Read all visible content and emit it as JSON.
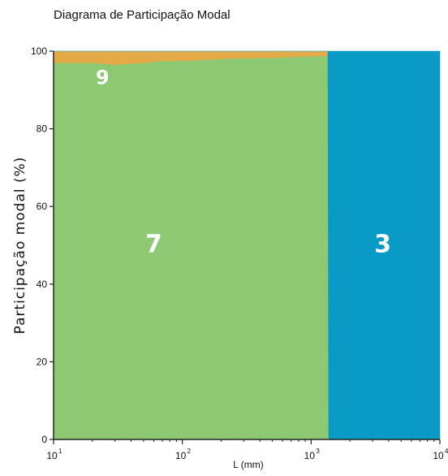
{
  "chart_data": {
    "type": "area",
    "title": "Diagrama de Participação Modal",
    "xlabel": "L (mm)",
    "ylabel": "Participação modal (%)",
    "x_scale": "log",
    "xlim": [
      10,
      10000
    ],
    "ylim": [
      0,
      100
    ],
    "x_ticks": [
      {
        "base": "10",
        "exp": "1"
      },
      {
        "base": "10",
        "exp": "2"
      },
      {
        "base": "10",
        "exp": "3"
      },
      {
        "base": "10",
        "exp": "4"
      }
    ],
    "y_ticks": [
      "0",
      "20",
      "40",
      "60",
      "80",
      "100"
    ],
    "grid": false,
    "legend": "none",
    "x": [
      10,
      20,
      30,
      50,
      70,
      100,
      150,
      200,
      300,
      500,
      700,
      1000,
      1350,
      1370,
      1380,
      10000
    ],
    "series": [
      {
        "label": "7",
        "color": "#8dc872",
        "values": [
          97,
          97,
          96.5,
          97,
          97.5,
          97.5,
          97.8,
          98,
          98.2,
          98.3,
          98.5,
          98.7,
          98.8,
          1,
          0,
          0
        ]
      },
      {
        "label": "9",
        "color": "#e4aa48",
        "values": [
          3,
          3,
          3.5,
          3,
          2.5,
          2.5,
          2.2,
          2,
          1.8,
          1.7,
          1.5,
          1.3,
          1.2,
          0,
          0,
          0
        ]
      },
      {
        "label": "3",
        "color": "#099bc5",
        "values": [
          0,
          0,
          0,
          0,
          0,
          0,
          0,
          0,
          0,
          0,
          0,
          0,
          0,
          99,
          100,
          100
        ]
      }
    ],
    "region_labels": [
      "9",
      "7",
      "3"
    ]
  }
}
